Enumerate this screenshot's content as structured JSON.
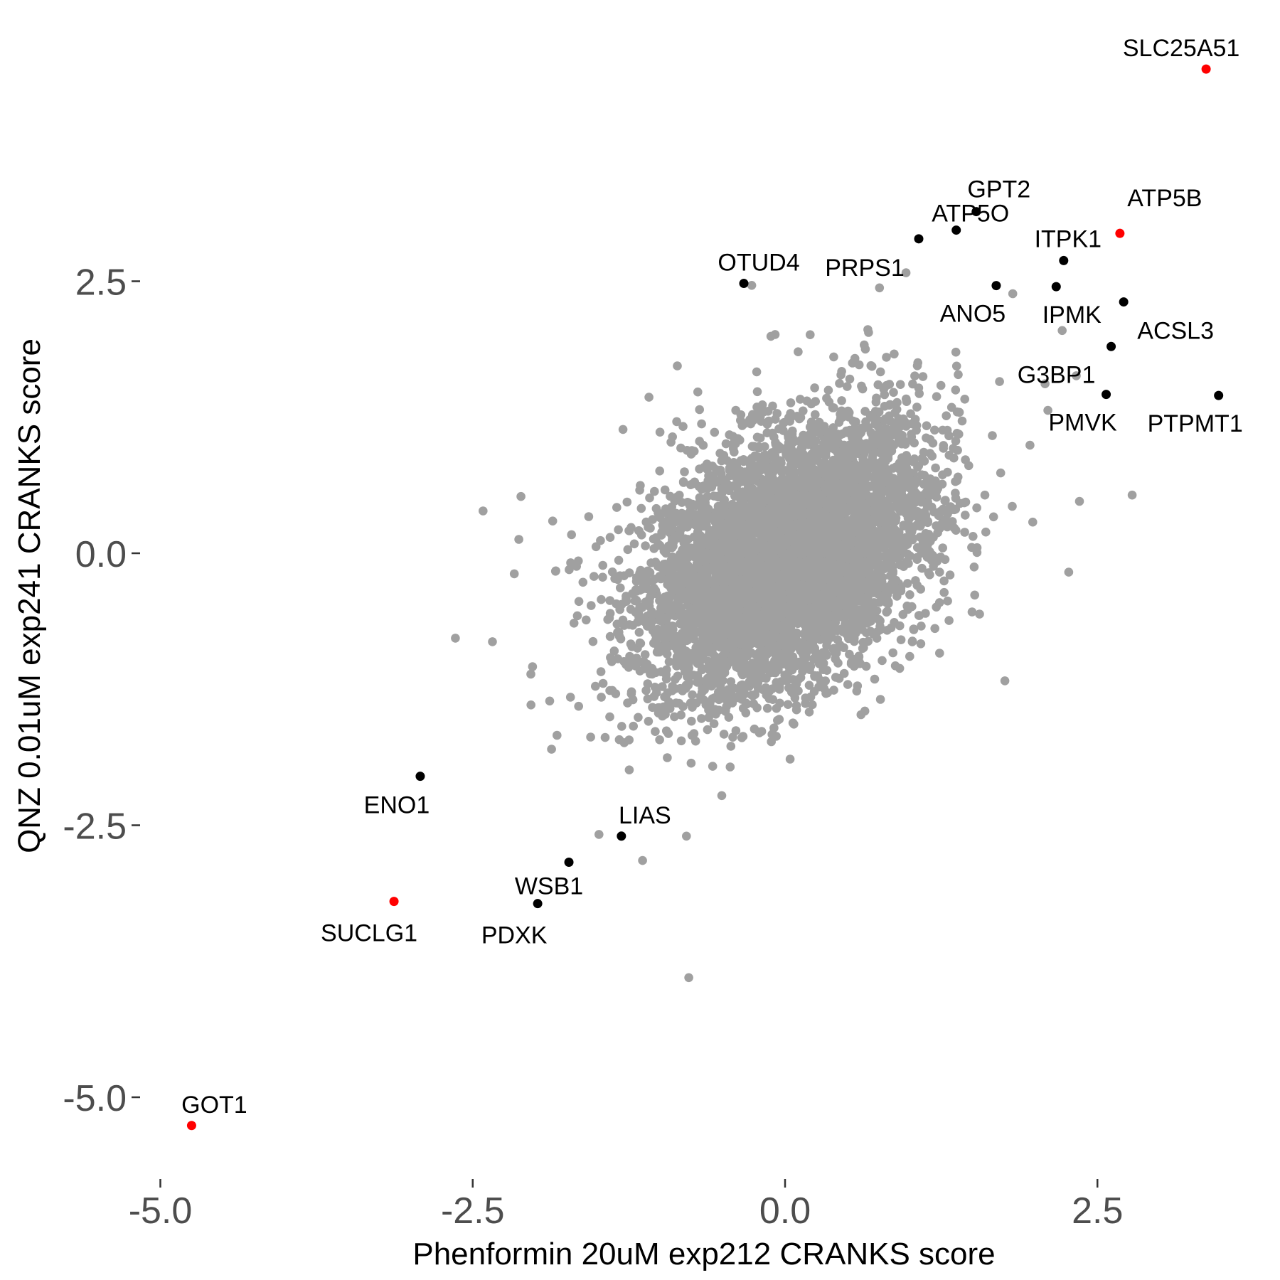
{
  "chart_data": {
    "type": "scatter",
    "title": "",
    "xlabel": "Phenformin 20uM exp212 CRANKS score",
    "ylabel": "QNZ 0.01uM exp241 CRANKS score",
    "x_ticks": [
      -5.0,
      -2.5,
      0.0,
      2.5
    ],
    "x_tick_labels": [
      "-5.0",
      "-2.5",
      "0.0",
      "2.5"
    ],
    "y_ticks": [
      2.5,
      0.0,
      -2.5,
      -5.0
    ],
    "y_tick_labels": [
      "2.5",
      "0.0",
      "-2.5",
      "-5.0"
    ],
    "grid": false,
    "colors": {
      "background_points": "#A0A0A0",
      "highlight": "#000000",
      "top_hit": "#FF0000"
    },
    "background_points": {
      "count": 6000,
      "center": [
        0.0,
        -0.05
      ],
      "sd": [
        0.55,
        0.6
      ],
      "correlation": 0.4
    },
    "labeled_points": [
      {
        "gene": "SLC25A51",
        "x": 3.37,
        "y": 4.45,
        "group": "top_hit"
      },
      {
        "gene": "GPT2",
        "x": 1.53,
        "y": 3.14,
        "group": "highlight"
      },
      {
        "gene": "ATP5O",
        "x": 1.37,
        "y": 2.97,
        "group": "highlight"
      },
      {
        "gene": "PRPS1",
        "x": 1.07,
        "y": 2.89,
        "group": "highlight"
      },
      {
        "gene": "ANO5",
        "x": 1.69,
        "y": 2.46,
        "group": "highlight"
      },
      {
        "gene": "ITPK1",
        "x": 2.23,
        "y": 2.69,
        "group": "highlight"
      },
      {
        "gene": "ATP5B",
        "x": 2.68,
        "y": 2.94,
        "group": "top_hit"
      },
      {
        "gene": "IPMK",
        "x": 2.17,
        "y": 2.45,
        "group": "highlight"
      },
      {
        "gene": "ACSL3",
        "x": 2.71,
        "y": 2.31,
        "group": "highlight"
      },
      {
        "gene": "G3BP1",
        "x": 2.61,
        "y": 1.9,
        "group": "highlight"
      },
      {
        "gene": "PMVK",
        "x": 2.57,
        "y": 1.46,
        "group": "highlight"
      },
      {
        "gene": "PTPMT1",
        "x": 3.47,
        "y": 1.45,
        "group": "highlight"
      },
      {
        "gene": "OTUD4",
        "x": -0.33,
        "y": 2.48,
        "group": "highlight"
      },
      {
        "gene": "ENO1",
        "x": -2.92,
        "y": -2.05,
        "group": "highlight"
      },
      {
        "gene": "LIAS",
        "x": -1.31,
        "y": -2.6,
        "group": "highlight"
      },
      {
        "gene": "WSB1",
        "x": -1.73,
        "y": -2.84,
        "group": "highlight"
      },
      {
        "gene": "PDXK",
        "x": -1.98,
        "y": -3.22,
        "group": "highlight"
      },
      {
        "gene": "SUCLG1",
        "x": -3.13,
        "y": -3.2,
        "group": "top_hit"
      },
      {
        "gene": "GOT1",
        "x": -4.75,
        "y": -5.26,
        "group": "top_hit"
      }
    ]
  }
}
